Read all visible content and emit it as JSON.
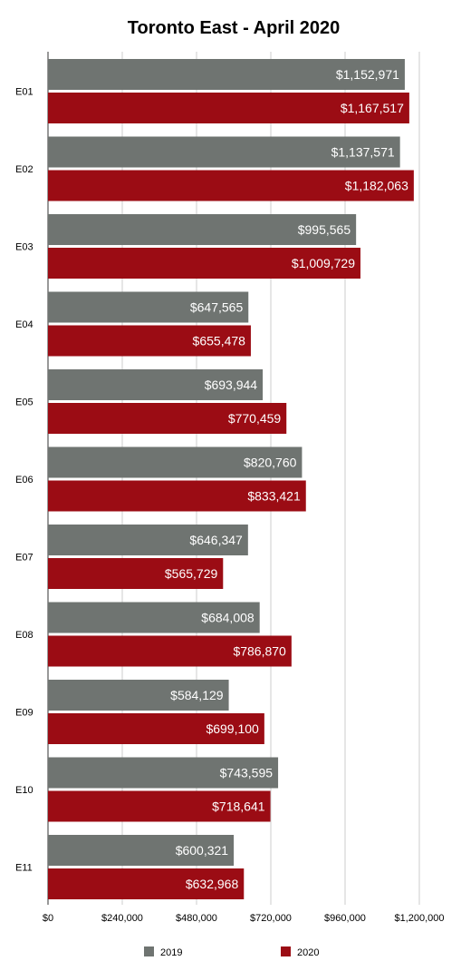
{
  "chart_data": {
    "type": "bar",
    "orientation": "horizontal",
    "title": "Toronto East - April 2020",
    "categories": [
      "E01",
      "E02",
      "E03",
      "E04",
      "E05",
      "E06",
      "E07",
      "E08",
      "E09",
      "E10",
      "E11"
    ],
    "series": [
      {
        "name": "2019",
        "color": "#6f7471",
        "values": [
          1152971,
          1137571,
          995565,
          647565,
          693944,
          820760,
          646347,
          684008,
          584129,
          743595,
          600321
        ],
        "labels": [
          "$1,152,971",
          "$1,137,571",
          "$995,565",
          "$647,565",
          "$693,944",
          "$820,760",
          "$646,347",
          "$684,008",
          "$584,129",
          "$743,595",
          "$600,321"
        ]
      },
      {
        "name": "2020",
        "color": "#9b0c14",
        "values": [
          1167517,
          1182063,
          1009729,
          655478,
          770459,
          833421,
          565729,
          786870,
          699100,
          718641,
          632968
        ],
        "labels": [
          "$1,167,517",
          "$1,182,063",
          "$1,009,729",
          "$655,478",
          "$770,459",
          "$833,421",
          "$565,729",
          "$786,870",
          "$699,100",
          "$718,641",
          "$632,968"
        ]
      }
    ],
    "xlim": [
      0,
      1200000
    ],
    "xticks": [
      0,
      240000,
      480000,
      720000,
      960000,
      1200000
    ],
    "xtick_labels": [
      "$0",
      "$240,000",
      "$480,000",
      "$720,000",
      "$960,000",
      "$1,200,000"
    ],
    "grid": true,
    "legend": "bottom"
  }
}
